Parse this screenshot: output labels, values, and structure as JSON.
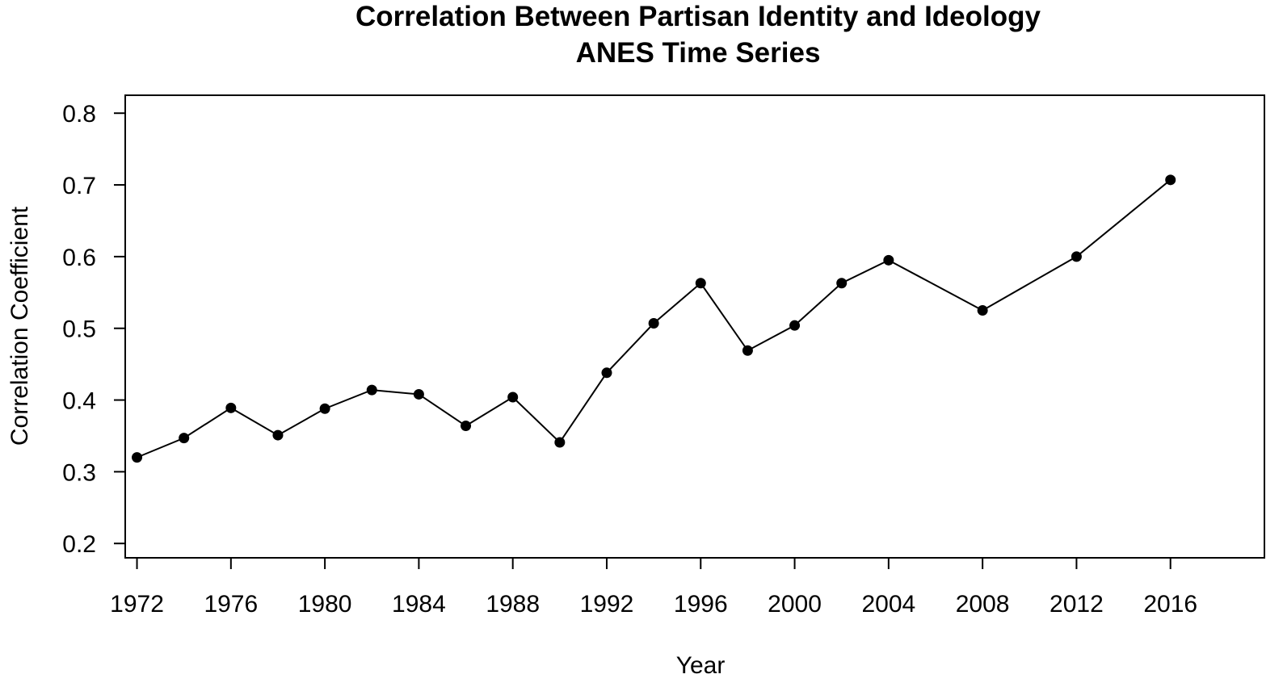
{
  "chart_data": {
    "type": "line",
    "title": "Correlation Between Partisan Identity and Ideology",
    "subtitle": "ANES Time Series",
    "xlabel": "Year",
    "ylabel": "Correlation Coefficient",
    "xlim": [
      1971.5,
      2020
    ],
    "ylim": [
      0.18,
      0.825
    ],
    "xticks": [
      1972,
      1976,
      1980,
      1984,
      1988,
      1992,
      1996,
      2000,
      2004,
      2008,
      2012,
      2016
    ],
    "xtick_labels": [
      "1972",
      "1976",
      "1980",
      "1984",
      "1988",
      "1992",
      "1996",
      "2000",
      "2004",
      "2008",
      "2012",
      "2016"
    ],
    "yticks": [
      0.2,
      0.3,
      0.4,
      0.5,
      0.6,
      0.7,
      0.8
    ],
    "ytick_labels": [
      "0.2",
      "0.3",
      "0.4",
      "0.5",
      "0.6",
      "0.7",
      "0.8"
    ],
    "grid": false,
    "series": [
      {
        "x": [
          1972,
          1974,
          1976,
          1978,
          1980,
          1982,
          1984,
          1986,
          1988,
          1990,
          1992,
          1994,
          1996,
          1998,
          2000,
          2002,
          2004,
          2008,
          2012,
          2016
        ],
        "y": [
          0.32,
          0.347,
          0.389,
          0.351,
          0.388,
          0.414,
          0.408,
          0.364,
          0.404,
          0.341,
          0.438,
          0.507,
          0.563,
          0.469,
          0.504,
          0.563,
          0.595,
          0.525,
          0.6,
          0.707
        ],
        "color": "#000000",
        "marker": "filled-circle"
      }
    ]
  }
}
